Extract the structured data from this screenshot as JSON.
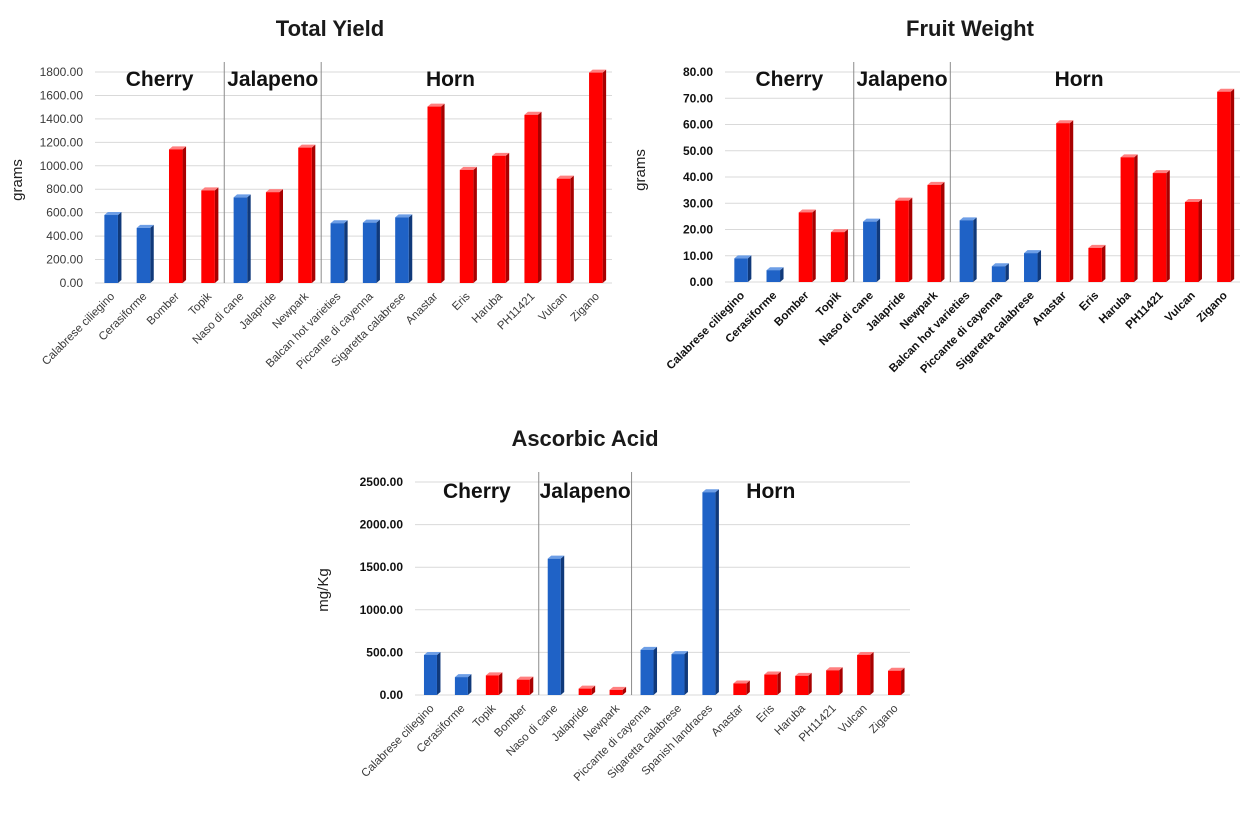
{
  "colors": {
    "accent": "#1f5fbf",
    "bar_red": "#ff0000",
    "bar_blue": "#1f5fbf"
  },
  "chart_data": [
    {
      "type": "bar",
      "title": "Total Yield",
      "ylabel": "grams",
      "xlabel": "",
      "ylim": [
        0,
        1800
      ],
      "yticks": [
        "0.00",
        "200.00",
        "400.00",
        "600.00",
        "800.00",
        "1000.00",
        "1200.00",
        "1400.00",
        "1600.00",
        "1800.00"
      ],
      "grid": true,
      "groups": [
        {
          "name": "Cherry",
          "start": 0,
          "count": 4
        },
        {
          "name": "Jalapeno",
          "start": 4,
          "count": 3
        },
        {
          "name": "Horn",
          "start": 7,
          "count": 8
        }
      ],
      "categories": [
        "Calabrese ciliegino",
        "Cerasiforme",
        "Bomber",
        "Topik",
        "Naso di cane",
        "Jalapride",
        "Newpark",
        "Balcan hot varieties",
        "Piccante di cayenna",
        "Sigaretta calabrese",
        "Anastar",
        "Eris",
        "Haruba",
        "PH11421",
        "Vulcan",
        "Zigano"
      ],
      "values": [
        580,
        470,
        1140,
        790,
        730,
        775,
        1155,
        510,
        515,
        560,
        1505,
        965,
        1085,
        1435,
        890,
        1795
      ],
      "colors": [
        "blue",
        "blue",
        "red",
        "red",
        "blue",
        "red",
        "red",
        "blue",
        "blue",
        "blue",
        "red",
        "red",
        "red",
        "red",
        "red",
        "red"
      ]
    },
    {
      "type": "bar",
      "title": "Fruit Weight",
      "ylabel": "grams",
      "xlabel": "",
      "ylim": [
        0,
        80
      ],
      "yticks": [
        "0.00",
        "10.00",
        "20.00",
        "30.00",
        "40.00",
        "50.00",
        "60.00",
        "70.00",
        "80.00"
      ],
      "grid": true,
      "groups": [
        {
          "name": "Cherry",
          "start": 0,
          "count": 4
        },
        {
          "name": "Jalapeno",
          "start": 4,
          "count": 3
        },
        {
          "name": "Horn",
          "start": 7,
          "count": 8
        }
      ],
      "categories": [
        "Calabrese ciliegino",
        "Cerasiforme",
        "Bomber",
        "Topik",
        "Naso di cane",
        "Jalapride",
        "Newpark",
        "Balcan hot varieties",
        "Piccante di cayenna",
        "Sigaretta calabrese",
        "Anastar",
        "Eris",
        "Haruba",
        "PH11421",
        "Vulcan",
        "Zigano"
      ],
      "values": [
        9,
        4.5,
        26.5,
        19,
        23,
        31,
        37,
        23.5,
        6,
        11,
        60.5,
        13,
        47.5,
        41.5,
        30.5,
        72.5
      ],
      "colors": [
        "blue",
        "blue",
        "red",
        "red",
        "blue",
        "red",
        "red",
        "blue",
        "blue",
        "blue",
        "red",
        "red",
        "red",
        "red",
        "red",
        "red"
      ]
    },
    {
      "type": "bar",
      "title": "Ascorbic Acid",
      "ylabel": "mg/Kg",
      "xlabel": "",
      "ylim": [
        0,
        2500
      ],
      "yticks": [
        "0.00",
        "500.00",
        "1000.00",
        "1500.00",
        "2000.00",
        "2500.00"
      ],
      "grid": true,
      "groups": [
        {
          "name": "Cherry",
          "start": 0,
          "count": 4
        },
        {
          "name": "Jalapeno",
          "start": 4,
          "count": 3
        },
        {
          "name": "Horn",
          "start": 7,
          "count": 9
        }
      ],
      "categories": [
        "Calabrese ciliegino",
        "Cerasiforme",
        "Topik",
        "Bomber",
        "Naso di cane",
        "Jalapride",
        "Newpark",
        "Piccante di cayenna",
        "Sigaretta calabrese",
        "Spanish landraces",
        "Anastar",
        "Eris",
        "Haruba",
        "PH11421",
        "Vulcan",
        "Zigano"
      ],
      "values": [
        470,
        210,
        230,
        180,
        1600,
        75,
        60,
        530,
        480,
        2380,
        135,
        240,
        225,
        290,
        470,
        285
      ],
      "colors": [
        "blue",
        "blue",
        "red",
        "red",
        "blue",
        "red",
        "red",
        "blue",
        "blue",
        "blue",
        "red",
        "red",
        "red",
        "red",
        "red",
        "red"
      ]
    }
  ]
}
